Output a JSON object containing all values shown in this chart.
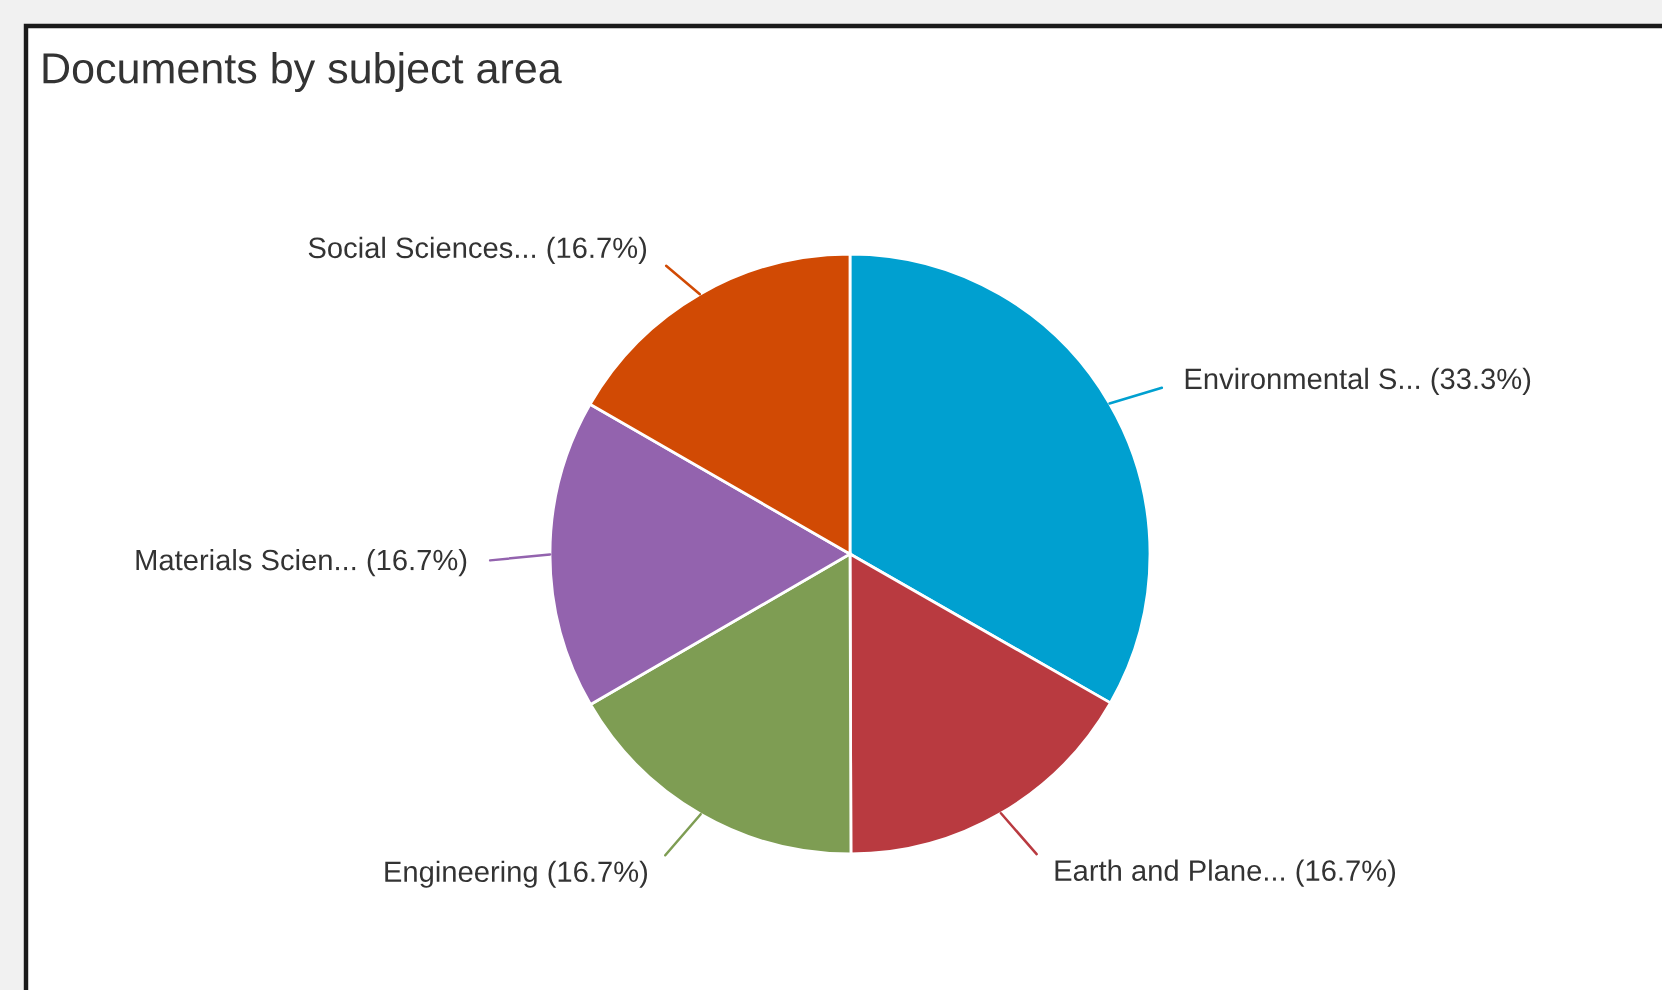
{
  "chart_data": {
    "type": "pie",
    "title": "Documents by subject area",
    "categories": [
      "Environmental S...",
      "Earth and Plane...",
      "Engineering",
      "Materials Scien...",
      "Social Sciences..."
    ],
    "values": [
      33.3,
      16.7,
      16.7,
      16.7,
      16.7
    ],
    "colors": [
      "#00a0d0",
      "#b93a40",
      "#7e9d53",
      "#9363ae",
      "#d14a04"
    ],
    "value_labels": [
      "(33.3%)",
      "(16.7%)",
      "(16.7%)",
      "(16.7%)",
      "(16.7%)"
    ]
  }
}
